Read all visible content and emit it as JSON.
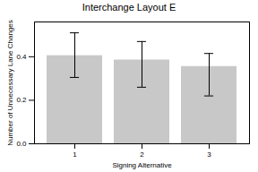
{
  "chart_data": {
    "type": "bar",
    "title": "Interchange Layout E",
    "xlabel": "Signing Alternative",
    "ylabel": "Number of Unnecessary Lane Changes",
    "categories": [
      "1",
      "2",
      "3"
    ],
    "values": [
      0.405,
      0.385,
      0.355
    ],
    "ci_upper": [
      0.51,
      0.47,
      0.415
    ],
    "ci_lower": [
      0.305,
      0.26,
      0.22
    ],
    "color": "#c8c8c8",
    "ylim": [
      0.0,
      0.56
    ],
    "yticks": [
      {
        "value": 0.0,
        "label": "0.0"
      },
      0.2,
      0.4
    ],
    "grid": false
  }
}
